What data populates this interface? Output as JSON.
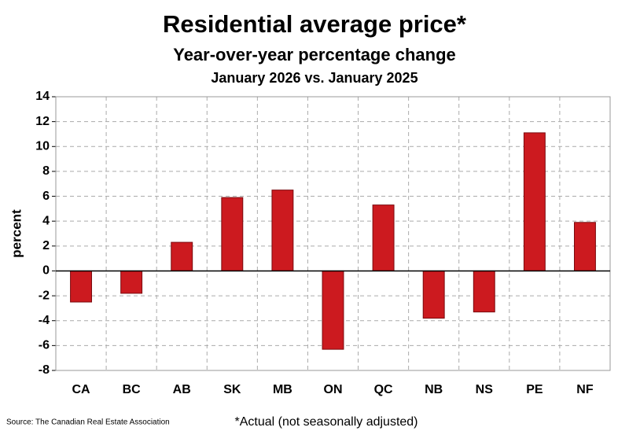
{
  "chart_data": {
    "type": "bar",
    "title": "Residential average price*",
    "subtitle": "Year-over-year percentage change",
    "period": "January 2026 vs. January 2025",
    "y_label": "percent",
    "source": "Source: The Canadian Real Estate Association",
    "footnote": "*Actual (not seasonally adjusted)",
    "categories": [
      "CA",
      "BC",
      "AB",
      "SK",
      "MB",
      "ON",
      "QC",
      "NB",
      "NS",
      "PE",
      "NF"
    ],
    "values": [
      -2.5,
      -1.8,
      2.3,
      5.9,
      6.5,
      -6.3,
      5.3,
      -3.8,
      -3.3,
      11.1,
      3.9
    ],
    "color": "#cc1a1f",
    "ylim": [
      -8,
      14
    ],
    "yticks": [
      -8,
      -6,
      -4,
      -2,
      0,
      2,
      4,
      6,
      8,
      10,
      12,
      14
    ],
    "grid": true
  }
}
